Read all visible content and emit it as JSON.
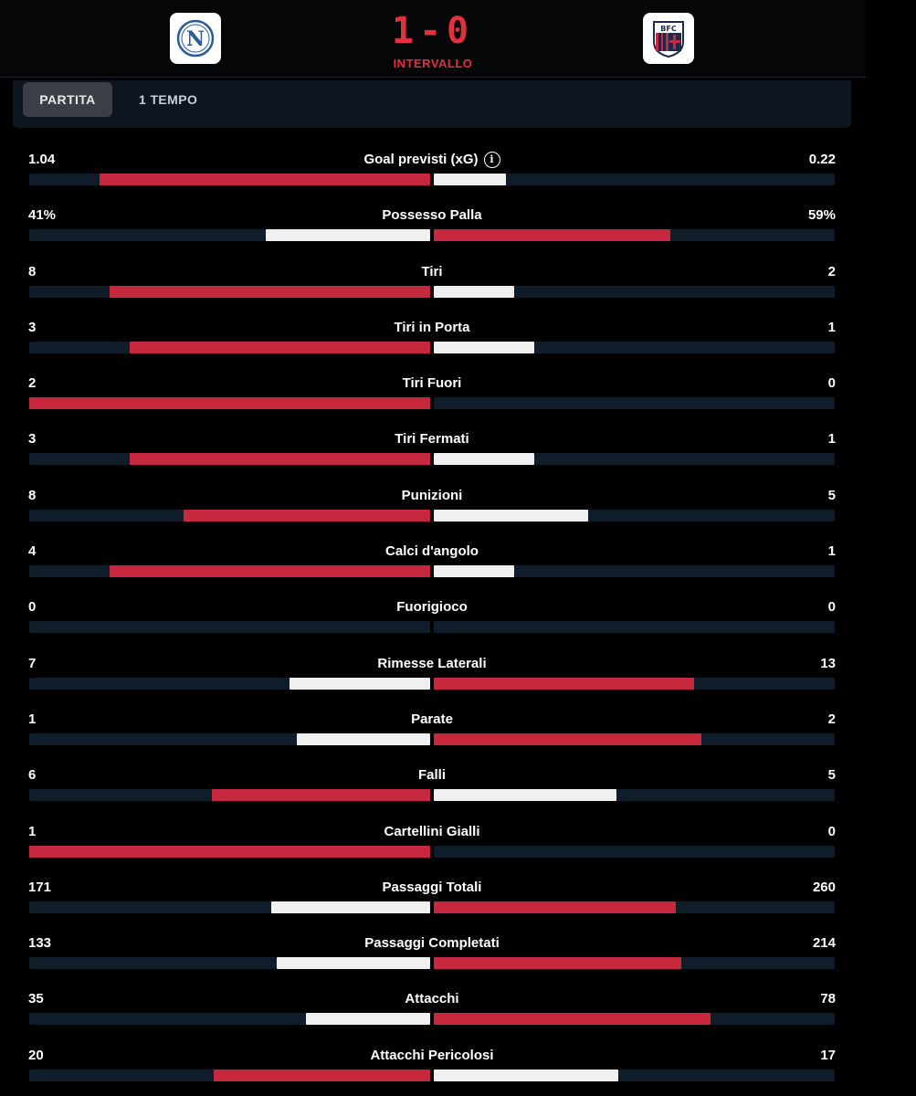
{
  "match": {
    "score": "1-0",
    "status": "INTERVALLO",
    "home_logo_text": "N",
    "away_logo_text": "BFC"
  },
  "tabs": [
    {
      "label": "PARTITA",
      "active": true
    },
    {
      "label": "1 TEMPO",
      "active": false
    }
  ],
  "colors": {
    "red": "#c8283e",
    "white": "#f0f0f0",
    "track": "#0f1c29"
  },
  "stats": [
    {
      "label": "Goal previsti (xG)",
      "home": "1.04",
      "away": "0.22",
      "home_share": 0.825,
      "away_share": 0.18,
      "leader": "home",
      "info": true
    },
    {
      "label": "Possesso Palla",
      "home": "41%",
      "away": "59%",
      "home_share": 0.41,
      "away_share": 0.59,
      "leader": "away"
    },
    {
      "label": "Tiri",
      "home": "8",
      "away": "2",
      "home_share": 0.8,
      "away_share": 0.2,
      "leader": "home"
    },
    {
      "label": "Tiri in Porta",
      "home": "3",
      "away": "1",
      "home_share": 0.75,
      "away_share": 0.25,
      "leader": "home"
    },
    {
      "label": "Tiri Fuori",
      "home": "2",
      "away": "0",
      "home_share": 1.0,
      "away_share": 0.0,
      "leader": "home"
    },
    {
      "label": "Tiri Fermati",
      "home": "3",
      "away": "1",
      "home_share": 0.75,
      "away_share": 0.25,
      "leader": "home"
    },
    {
      "label": "Punizioni",
      "home": "8",
      "away": "5",
      "home_share": 0.615,
      "away_share": 0.385,
      "leader": "home"
    },
    {
      "label": "Calci d'angolo",
      "home": "4",
      "away": "1",
      "home_share": 0.8,
      "away_share": 0.2,
      "leader": "home"
    },
    {
      "label": "Fuorigioco",
      "home": "0",
      "away": "0",
      "home_share": 0.0,
      "away_share": 0.0,
      "leader": "none"
    },
    {
      "label": "Rimesse Laterali",
      "home": "7",
      "away": "13",
      "home_share": 0.35,
      "away_share": 0.65,
      "leader": "away"
    },
    {
      "label": "Parate",
      "home": "1",
      "away": "2",
      "home_share": 0.333,
      "away_share": 0.667,
      "leader": "away"
    },
    {
      "label": "Falli",
      "home": "6",
      "away": "5",
      "home_share": 0.545,
      "away_share": 0.455,
      "leader": "home"
    },
    {
      "label": "Cartellini Gialli",
      "home": "1",
      "away": "0",
      "home_share": 1.0,
      "away_share": 0.0,
      "leader": "home"
    },
    {
      "label": "Passaggi Totali",
      "home": "171",
      "away": "260",
      "home_share": 0.397,
      "away_share": 0.603,
      "leader": "away"
    },
    {
      "label": "Passaggi Completati",
      "home": "133",
      "away": "214",
      "home_share": 0.383,
      "away_share": 0.617,
      "leader": "away"
    },
    {
      "label": "Attacchi",
      "home": "35",
      "away": "78",
      "home_share": 0.31,
      "away_share": 0.69,
      "leader": "away"
    },
    {
      "label": "Attacchi Pericolosi",
      "home": "20",
      "away": "17",
      "home_share": 0.54,
      "away_share": 0.46,
      "leader": "home"
    }
  ]
}
